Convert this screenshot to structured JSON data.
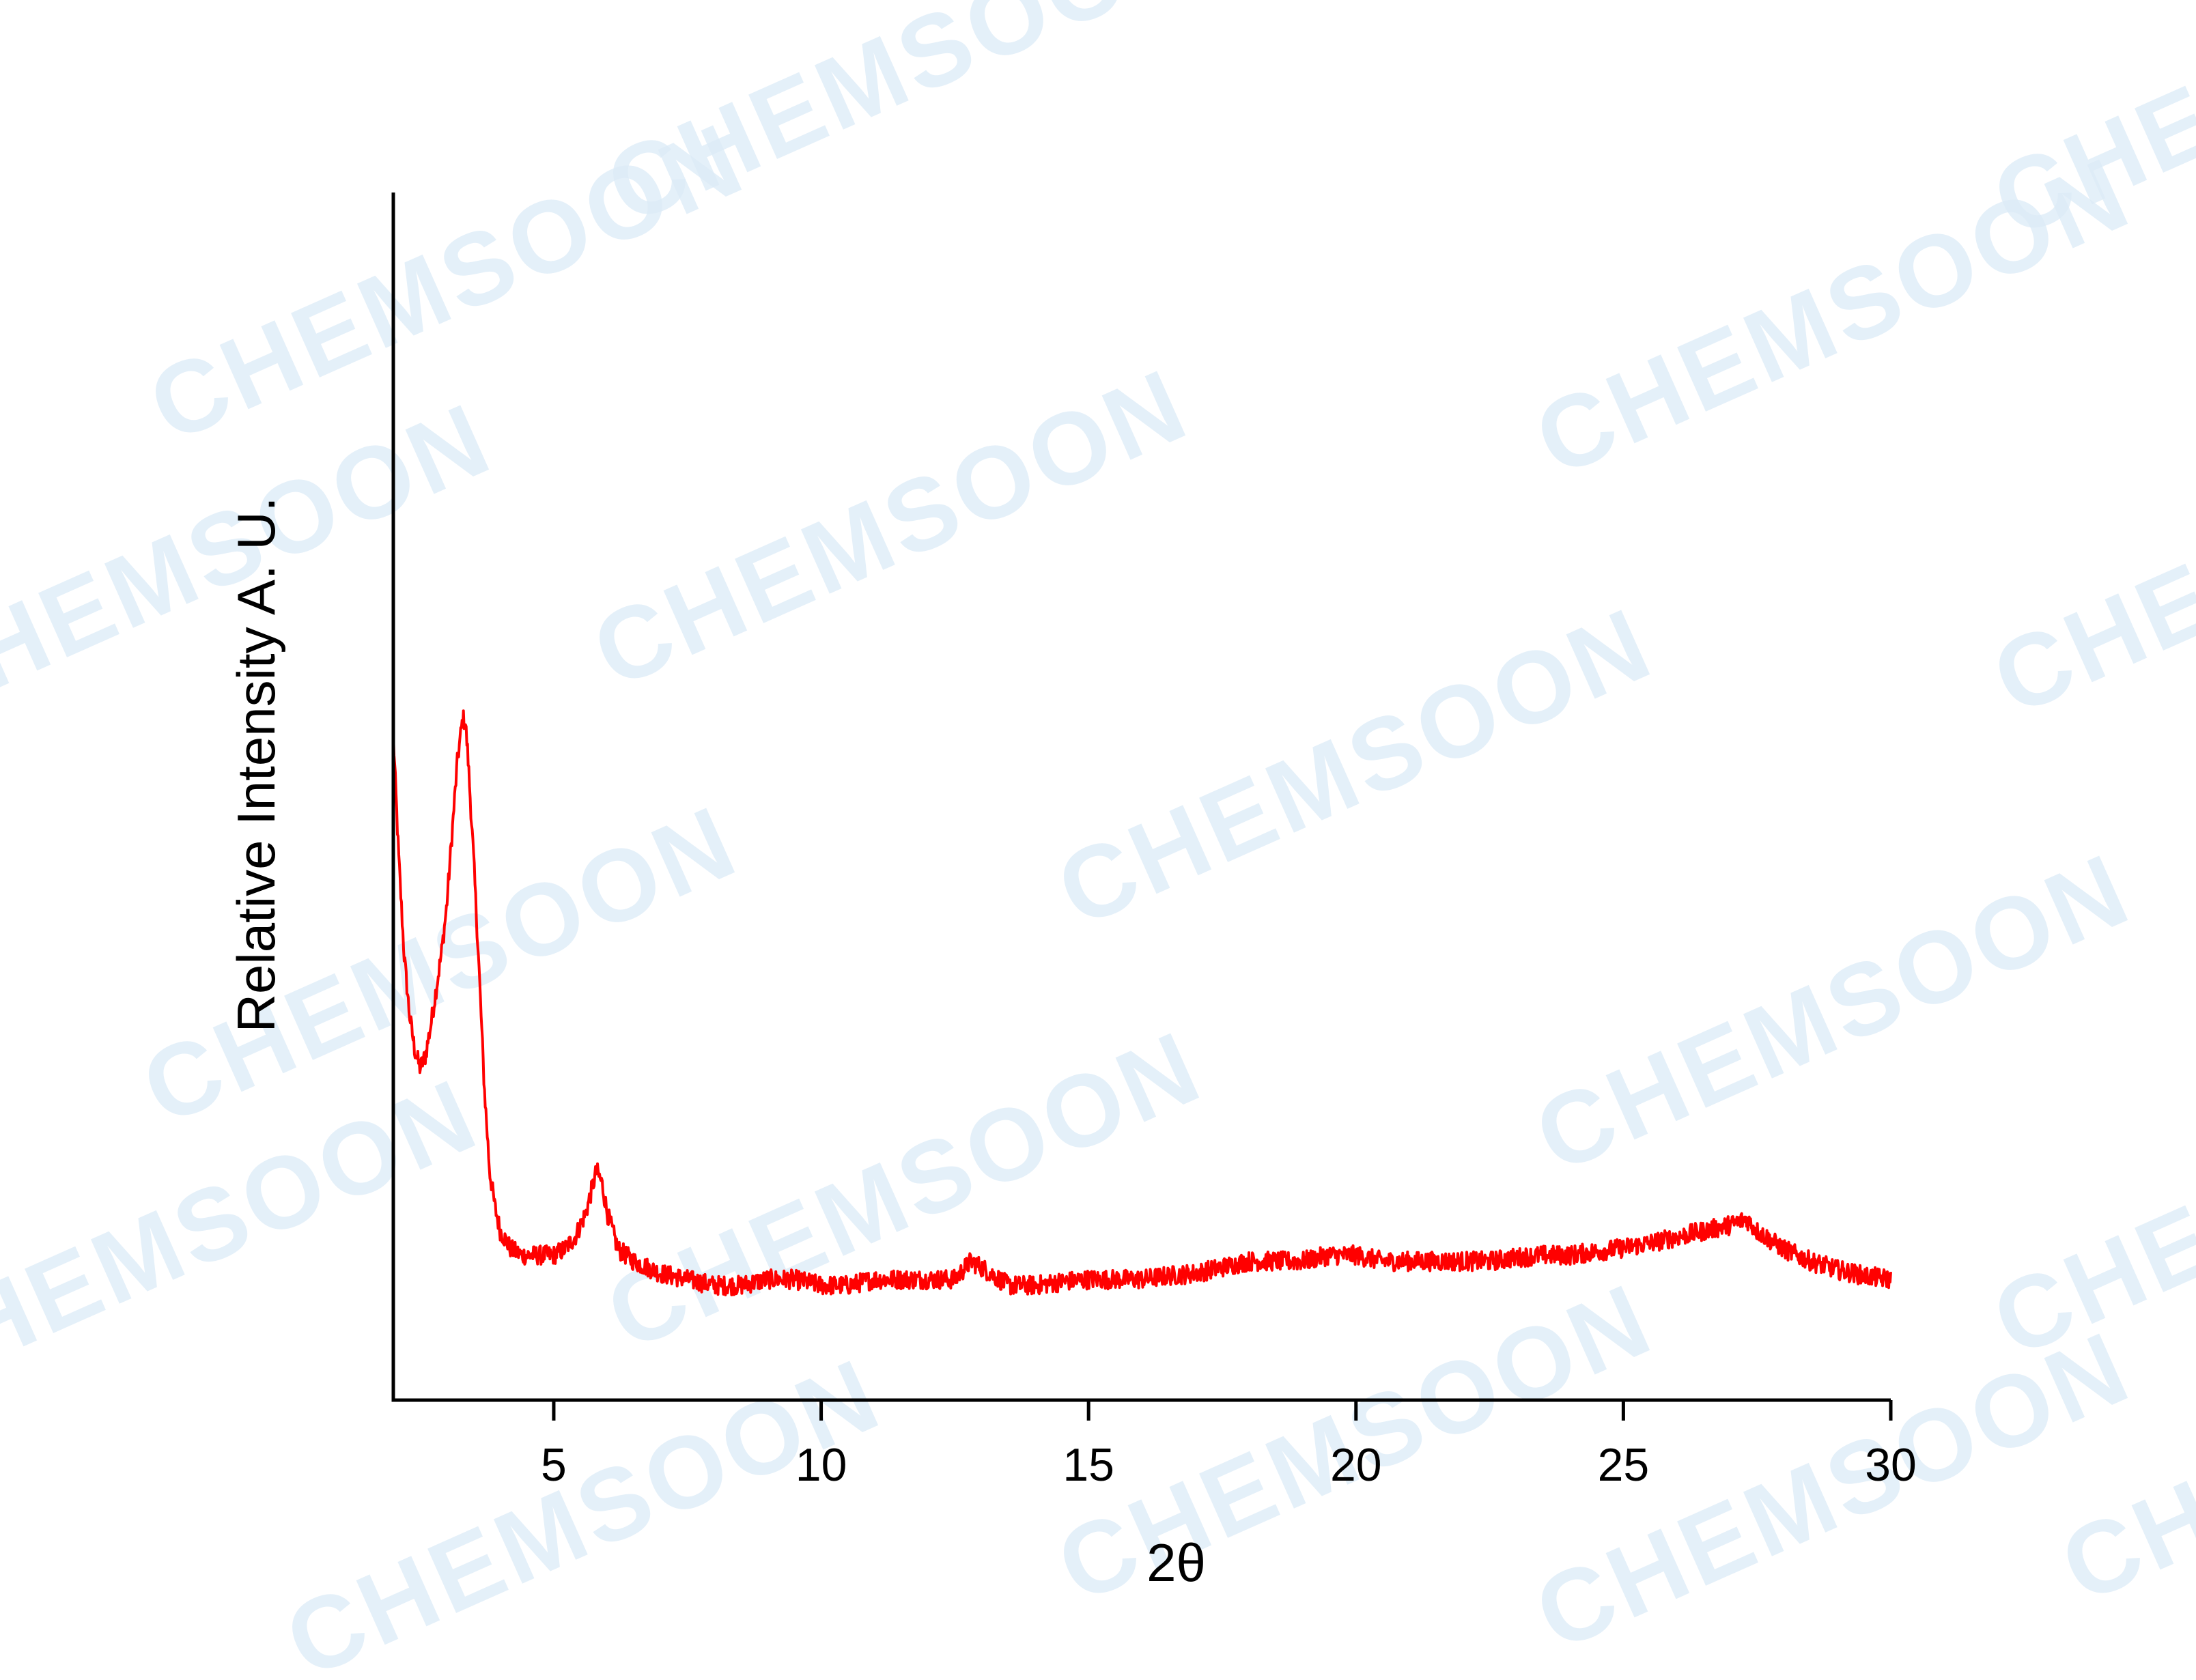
{
  "watermark": {
    "text": "CHEMSOON",
    "color": "#dcebf7"
  },
  "chart_data": {
    "type": "line",
    "title": "",
    "xlabel": "2θ",
    "ylabel": "Relative Intensity A. U.",
    "xlim": [
      2,
      30
    ],
    "ylim": [
      0,
      100
    ],
    "x_ticks": [
      5,
      10,
      15,
      20,
      25,
      30
    ],
    "y_ticks_shown": false,
    "grid": false,
    "legend": "none",
    "series": [
      {
        "color": "#ff0000",
        "x": [
          2.0,
          2.1,
          2.2,
          2.3,
          2.4,
          2.5,
          2.6,
          2.7,
          2.8,
          2.9,
          3.0,
          3.1,
          3.2,
          3.3,
          3.35,
          3.4,
          3.5,
          3.6,
          3.7,
          3.8,
          3.9,
          4.0,
          4.2,
          4.4,
          4.6,
          4.8,
          5.0,
          5.2,
          5.4,
          5.6,
          5.8,
          5.9,
          6.0,
          6.2,
          6.5,
          7.0,
          7.5,
          8.0,
          8.5,
          9.0,
          9.5,
          10.0,
          10.5,
          11.0,
          11.5,
          12.0,
          12.5,
          12.8,
          13.0,
          13.5,
          14.0,
          14.5,
          15.0,
          15.5,
          16.0,
          16.5,
          17.0,
          17.5,
          18.0,
          18.5,
          19.0,
          19.5,
          20.0,
          20.5,
          21.0,
          21.5,
          22.0,
          22.5,
          23.0,
          23.5,
          24.0,
          24.5,
          25.0,
          25.5,
          26.0,
          26.5,
          27.0,
          27.3,
          27.5,
          28.0,
          28.5,
          29.0,
          29.5,
          30.0
        ],
        "y": [
          55.0,
          45.0,
          37.0,
          32.0,
          29.0,
          27.5,
          28.5,
          31.0,
          34.0,
          37.0,
          41.0,
          47.0,
          53.0,
          56.5,
          56.0,
          53.0,
          45.0,
          36.0,
          26.0,
          19.0,
          16.0,
          14.0,
          12.5,
          12.0,
          12.0,
          12.0,
          12.0,
          12.5,
          13.5,
          15.5,
          19.0,
          18.0,
          15.5,
          12.5,
          11.5,
          10.5,
          10.0,
          9.5,
          9.5,
          10.0,
          10.0,
          9.5,
          9.5,
          10.0,
          10.0,
          10.0,
          10.0,
          11.5,
          11.0,
          9.5,
          9.5,
          9.8,
          10.0,
          10.0,
          10.0,
          10.3,
          10.5,
          11.0,
          11.5,
          11.5,
          11.5,
          12.0,
          12.0,
          11.5,
          11.5,
          11.5,
          11.5,
          11.5,
          11.8,
          12.0,
          12.0,
          12.3,
          12.6,
          13.0,
          13.5,
          14.0,
          14.5,
          15.0,
          14.0,
          12.5,
          11.5,
          10.8,
          10.3,
          10.0
        ]
      }
    ]
  }
}
